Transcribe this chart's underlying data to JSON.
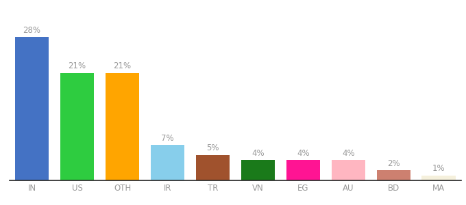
{
  "categories": [
    "IN",
    "US",
    "OTH",
    "IR",
    "TR",
    "VN",
    "EG",
    "AU",
    "BD",
    "MA"
  ],
  "values": [
    28,
    21,
    21,
    7,
    5,
    4,
    4,
    4,
    2,
    1
  ],
  "bar_colors": [
    "#4472c4",
    "#2ecc40",
    "#ffa500",
    "#87ceeb",
    "#a0522d",
    "#1a7a1a",
    "#ff1493",
    "#ffb6c1",
    "#cd8070",
    "#f5f0dc"
  ],
  "background_color": "#ffffff",
  "label_color": "#999999",
  "label_fontsize": 8.5,
  "tick_fontsize": 8.5,
  "ylim": [
    0,
    32
  ],
  "bar_width": 0.75
}
